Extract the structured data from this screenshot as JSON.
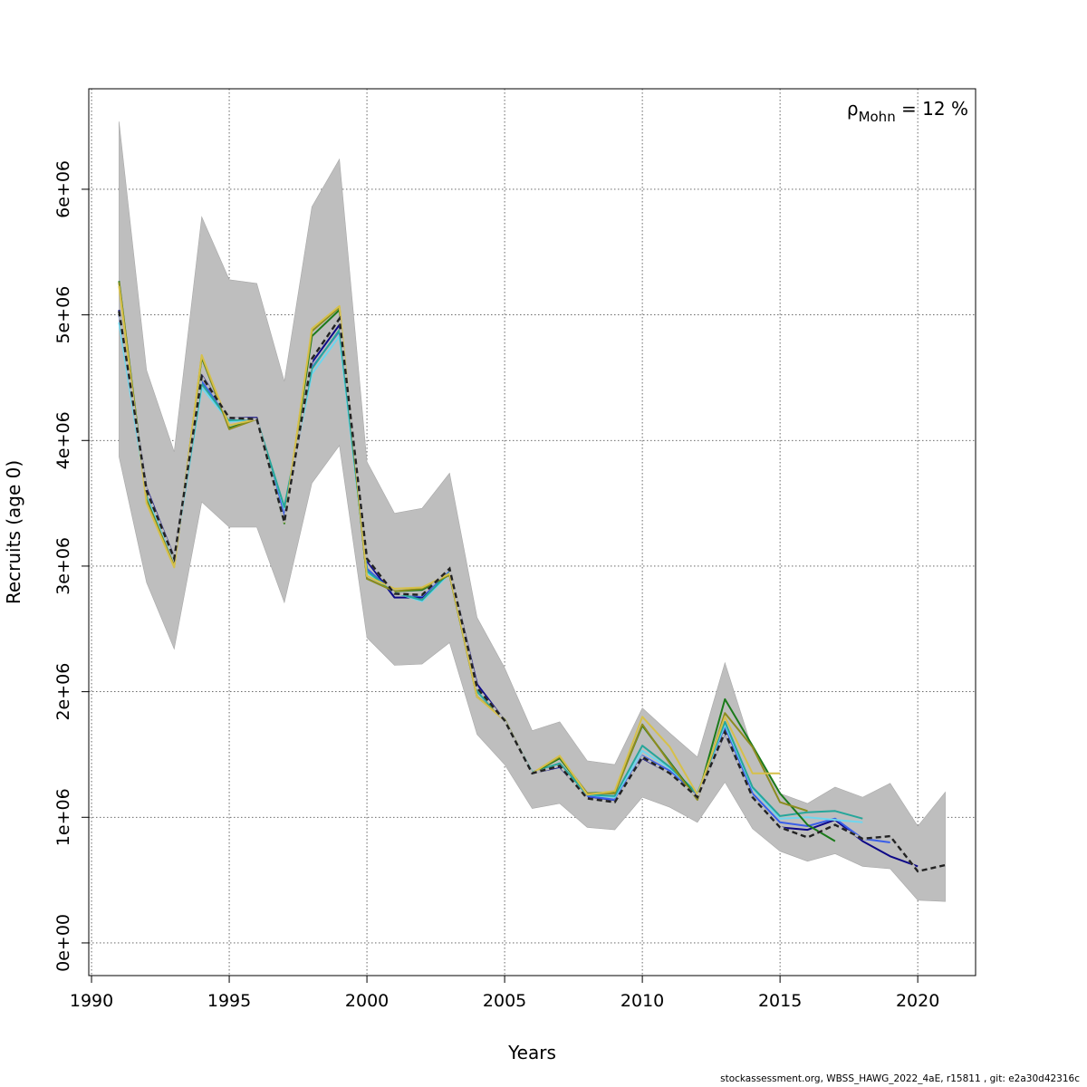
{
  "chart_data": {
    "type": "line",
    "xlabel": "Years",
    "ylabel": "Recruits (age 0)",
    "xlim": [
      1989.9,
      2022.1
    ],
    "ylim": [
      -260000,
      6800000
    ],
    "x_ticks": [
      1990,
      1995,
      2000,
      2005,
      2010,
      2015,
      2020
    ],
    "x_tick_labels": [
      "1990",
      "1995",
      "2000",
      "2005",
      "2010",
      "2015",
      "2020"
    ],
    "y_ticks": [
      0,
      1000000,
      2000000,
      3000000,
      4000000,
      5000000,
      6000000
    ],
    "y_tick_labels": [
      "0e+00",
      "1e+06",
      "2e+06",
      "3e+06",
      "4e+06",
      "5e+06",
      "6e+06"
    ],
    "grid": true,
    "annotation": {
      "symbol": "ρ",
      "subscript": "Mohn",
      "text": " = 12 %"
    },
    "confidence_band": {
      "color": "#bebebe",
      "x": [
        1991,
        1992,
        1993,
        1994,
        1995,
        1996,
        1997,
        1998,
        1999,
        2000,
        2001,
        2002,
        2003,
        2004,
        2005,
        2006,
        2007,
        2008,
        2009,
        2010,
        2011,
        2012,
        2013,
        2014,
        2015,
        2016,
        2017,
        2018,
        2019,
        2020,
        2021
      ],
      "lower": [
        3870000,
        2870000,
        2340000,
        3510000,
        3310000,
        3310000,
        2710000,
        3660000,
        3960000,
        2430000,
        2210000,
        2220000,
        2390000,
        1660000,
        1420000,
        1070000,
        1110000,
        920000,
        900000,
        1160000,
        1080000,
        960000,
        1280000,
        910000,
        730000,
        650000,
        710000,
        610000,
        590000,
        340000,
        330000
      ],
      "upper": [
        6540000,
        4560000,
        3910000,
        5780000,
        5280000,
        5250000,
        4470000,
        5860000,
        6240000,
        3830000,
        3420000,
        3460000,
        3740000,
        2590000,
        2190000,
        1690000,
        1760000,
        1450000,
        1420000,
        1870000,
        1670000,
        1480000,
        2230000,
        1540000,
        1190000,
        1110000,
        1240000,
        1160000,
        1270000,
        930000,
        1200000
      ]
    },
    "series": [
      {
        "color": "#0d0887",
        "x": [
          1991,
          1992,
          1993,
          1994,
          1995,
          1996,
          1997,
          1998,
          1999,
          2000,
          2001,
          2002,
          2003,
          2004,
          2005,
          2006,
          2007,
          2008,
          2009,
          2010,
          2011,
          2012,
          2013,
          2014,
          2015,
          2016,
          2017,
          2018,
          2019,
          2020
        ],
        "values": [
          5040000,
          3620000,
          3070000,
          4520000,
          4180000,
          4180000,
          3360000,
          4620000,
          4920000,
          3040000,
          2750000,
          2750000,
          2980000,
          2060000,
          1770000,
          1350000,
          1400000,
          1160000,
          1130000,
          1470000,
          1350000,
          1160000,
          1670000,
          1160000,
          920000,
          900000,
          980000,
          810000,
          690000,
          610000
        ]
      },
      {
        "color": "#3a5ee8",
        "x": [
          1991,
          1992,
          1993,
          1994,
          1995,
          1996,
          1997,
          1998,
          1999,
          2000,
          2001,
          2002,
          2003,
          2004,
          2005,
          2006,
          2007,
          2008,
          2009,
          2010,
          2011,
          2012,
          2013,
          2014,
          2015,
          2016,
          2017,
          2018,
          2019
        ],
        "values": [
          5000000,
          3590000,
          3060000,
          4470000,
          4170000,
          4170000,
          3400000,
          4580000,
          4870000,
          2980000,
          2780000,
          2760000,
          2960000,
          2020000,
          1770000,
          1350000,
          1410000,
          1170000,
          1140000,
          1490000,
          1370000,
          1170000,
          1710000,
          1190000,
          960000,
          930000,
          990000,
          830000,
          800000
        ]
      },
      {
        "color": "#6fd6ee",
        "x": [
          1991,
          1992,
          1993,
          1994,
          1995,
          1996,
          1997,
          1998,
          1999,
          2000,
          2001,
          2002,
          2003,
          2004,
          2005,
          2006,
          2007,
          2008,
          2009,
          2010,
          2011,
          2012,
          2013,
          2014,
          2015,
          2016,
          2017,
          2018
        ],
        "values": [
          4940000,
          3560000,
          3050000,
          4420000,
          4150000,
          4170000,
          3460000,
          4530000,
          4830000,
          2950000,
          2790000,
          2720000,
          2940000,
          2000000,
          1770000,
          1360000,
          1420000,
          1180000,
          1160000,
          1530000,
          1390000,
          1190000,
          1740000,
          1230000,
          990000,
          1000000,
          980000,
          960000
        ]
      },
      {
        "color": "#26a69a",
        "x": [
          1991,
          1992,
          1993,
          1994,
          1995,
          1996,
          1997,
          1998,
          1999,
          2000,
          2001,
          2002,
          2003,
          2004,
          2005,
          2006,
          2007,
          2008,
          2009,
          2010,
          2011,
          2012,
          2013,
          2014,
          2015,
          2016,
          2017,
          2018
        ],
        "values": [
          5020000,
          3590000,
          3060000,
          4450000,
          4160000,
          4170000,
          3470000,
          4570000,
          4880000,
          2960000,
          2790000,
          2730000,
          2950000,
          2000000,
          1770000,
          1360000,
          1430000,
          1180000,
          1170000,
          1570000,
          1400000,
          1190000,
          1760000,
          1240000,
          1010000,
          1040000,
          1050000,
          990000
        ]
      },
      {
        "color": "#1a7a1a",
        "x": [
          1991,
          1992,
          1993,
          1994,
          1995,
          1996,
          1997,
          1998,
          1999,
          2000,
          2001,
          2002,
          2003,
          2004,
          2005,
          2006,
          2007,
          2008,
          2009,
          2010,
          2011,
          2012,
          2013,
          2014,
          2015,
          2016,
          2017
        ],
        "values": [
          5270000,
          3530000,
          3000000,
          4660000,
          4100000,
          4170000,
          3340000,
          4830000,
          5040000,
          2900000,
          2800000,
          2810000,
          2930000,
          1960000,
          1780000,
          1350000,
          1470000,
          1190000,
          1200000,
          1730000,
          1440000,
          1150000,
          1940000,
          1570000,
          1190000,
          940000,
          810000
        ]
      },
      {
        "color": "#8c8c1e",
        "x": [
          1991,
          1992,
          1993,
          1994,
          1995,
          1996,
          1997,
          1998,
          1999,
          2000,
          2001,
          2002,
          2003,
          2004,
          2005,
          2006,
          2007,
          2008,
          2009,
          2010,
          2011,
          2012,
          2013,
          2014,
          2015,
          2016
        ],
        "values": [
          5260000,
          3520000,
          3000000,
          4670000,
          4090000,
          4170000,
          3350000,
          4870000,
          5060000,
          2900000,
          2800000,
          2820000,
          2930000,
          1960000,
          1780000,
          1350000,
          1480000,
          1190000,
          1190000,
          1740000,
          1430000,
          1140000,
          1830000,
          1560000,
          1120000,
          1050000
        ]
      },
      {
        "color": "#d6c04a",
        "x": [
          1991,
          1992,
          1993,
          1994,
          1995,
          1996,
          1997,
          1998,
          1999,
          2000,
          2001,
          2002,
          2003,
          2004,
          2005,
          2006,
          2007,
          2008,
          2009,
          2010,
          2011,
          2012,
          2013,
          2014,
          2015
        ],
        "values": [
          5230000,
          3500000,
          2990000,
          4680000,
          4120000,
          4170000,
          3350000,
          4890000,
          5070000,
          2920000,
          2820000,
          2830000,
          2940000,
          1960000,
          1770000,
          1350000,
          1490000,
          1180000,
          1210000,
          1800000,
          1560000,
          1180000,
          1800000,
          1350000,
          1350000
        ]
      },
      {
        "color": "#222222",
        "dashed": true,
        "x": [
          1991,
          1992,
          1993,
          1994,
          1995,
          1996,
          1997,
          1998,
          1999,
          2000,
          2001,
          2002,
          2003,
          2004,
          2005,
          2006,
          2007,
          2008,
          2009,
          2010,
          2011,
          2012,
          2013,
          2014,
          2015,
          2016,
          2017,
          2018,
          2019,
          2020,
          2021
        ],
        "values": [
          5030000,
          3600000,
          3060000,
          4510000,
          4180000,
          4170000,
          3350000,
          4650000,
          4970000,
          3060000,
          2780000,
          2770000,
          2980000,
          2030000,
          1770000,
          1350000,
          1410000,
          1150000,
          1120000,
          1480000,
          1350000,
          1160000,
          1680000,
          1160000,
          920000,
          840000,
          940000,
          830000,
          850000,
          570000,
          620000
        ]
      }
    ]
  },
  "footer": "stockassessment.org, WBSS_HAWG_2022_4aE, r15811 , git: e2a30d42316c"
}
